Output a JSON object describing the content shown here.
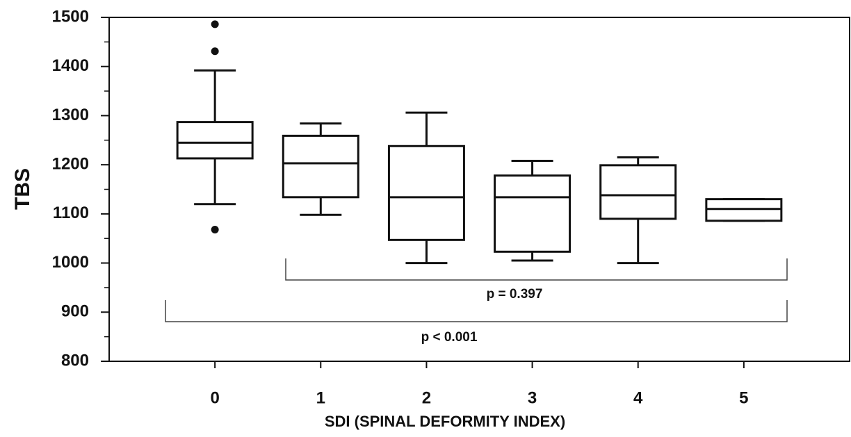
{
  "chart_data": {
    "type": "box",
    "y_label": "TBS",
    "x_label": "SDI (SPINAL DEFORMITY INDEX)",
    "categories": [
      "0",
      "1",
      "2",
      "3",
      "4",
      "5"
    ],
    "boxes": [
      {
        "low": 1120,
        "q1": 1213,
        "median": 1245,
        "q3": 1287,
        "high": 1392,
        "outliers": [
          1486,
          1431,
          1068
        ]
      },
      {
        "low": 1098,
        "q1": 1134,
        "median": 1203,
        "q3": 1259,
        "high": 1284,
        "outliers": []
      },
      {
        "low": 1000,
        "q1": 1047,
        "median": 1134,
        "q3": 1238,
        "high": 1306,
        "outliers": []
      },
      {
        "low": 1005,
        "q1": 1023,
        "median": 1134,
        "q3": 1178,
        "high": 1208,
        "outliers": []
      },
      {
        "low": 1000,
        "q1": 1090,
        "median": 1138,
        "q3": 1199,
        "high": 1215,
        "outliers": []
      },
      {
        "low": 1086,
        "q1": 1086,
        "median": 1110,
        "q3": 1130,
        "high": 1130,
        "outliers": []
      }
    ],
    "color": "#111111",
    "ylim": [
      800,
      1500
    ],
    "yticks": [
      800,
      900,
      1000,
      1100,
      1200,
      1300,
      1400,
      1500
    ],
    "annotations": [
      "p = 0.397",
      "p < 0.001"
    ]
  }
}
